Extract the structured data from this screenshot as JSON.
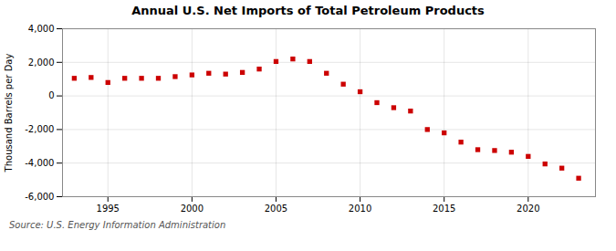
{
  "chart_data": {
    "type": "scatter",
    "title": "Annual U.S. Net Imports of Total Petroleum Products",
    "ylabel": "Thousand Barrels per Day",
    "source": "Source: U.S. Energy Information Administration",
    "x": [
      1993,
      1994,
      1995,
      1996,
      1997,
      1998,
      1999,
      2000,
      2001,
      2002,
      2003,
      2004,
      2005,
      2006,
      2007,
      2008,
      2009,
      2010,
      2011,
      2012,
      2013,
      2014,
      2015,
      2016,
      2017,
      2018,
      2019,
      2020,
      2021,
      2022,
      2023
    ],
    "values": [
      1050,
      1100,
      800,
      1050,
      1050,
      1050,
      1150,
      1250,
      1350,
      1300,
      1400,
      1600,
      2050,
      2200,
      2050,
      1350,
      700,
      250,
      -400,
      -700,
      -900,
      -2000,
      -2200,
      -2750,
      -3200,
      -3250,
      -3350,
      -3600,
      -4050,
      -4300,
      -4900
    ],
    "color": "#cc0000",
    "marker": "square",
    "xlim": [
      1992.3,
      2024.0
    ],
    "xticks": [
      1995,
      2000,
      2005,
      2010,
      2015,
      2020
    ],
    "ylim": [
      -6000,
      4000
    ],
    "yticks": [
      {
        "value": -6000,
        "label": "-6,000"
      },
      {
        "value": -4000,
        "label": "-4,000"
      },
      {
        "value": -2000,
        "label": "-2,000"
      },
      0,
      {
        "value": 2000,
        "label": "2,000"
      },
      {
        "value": 4000,
        "label": "4,000"
      }
    ],
    "grid": true
  }
}
